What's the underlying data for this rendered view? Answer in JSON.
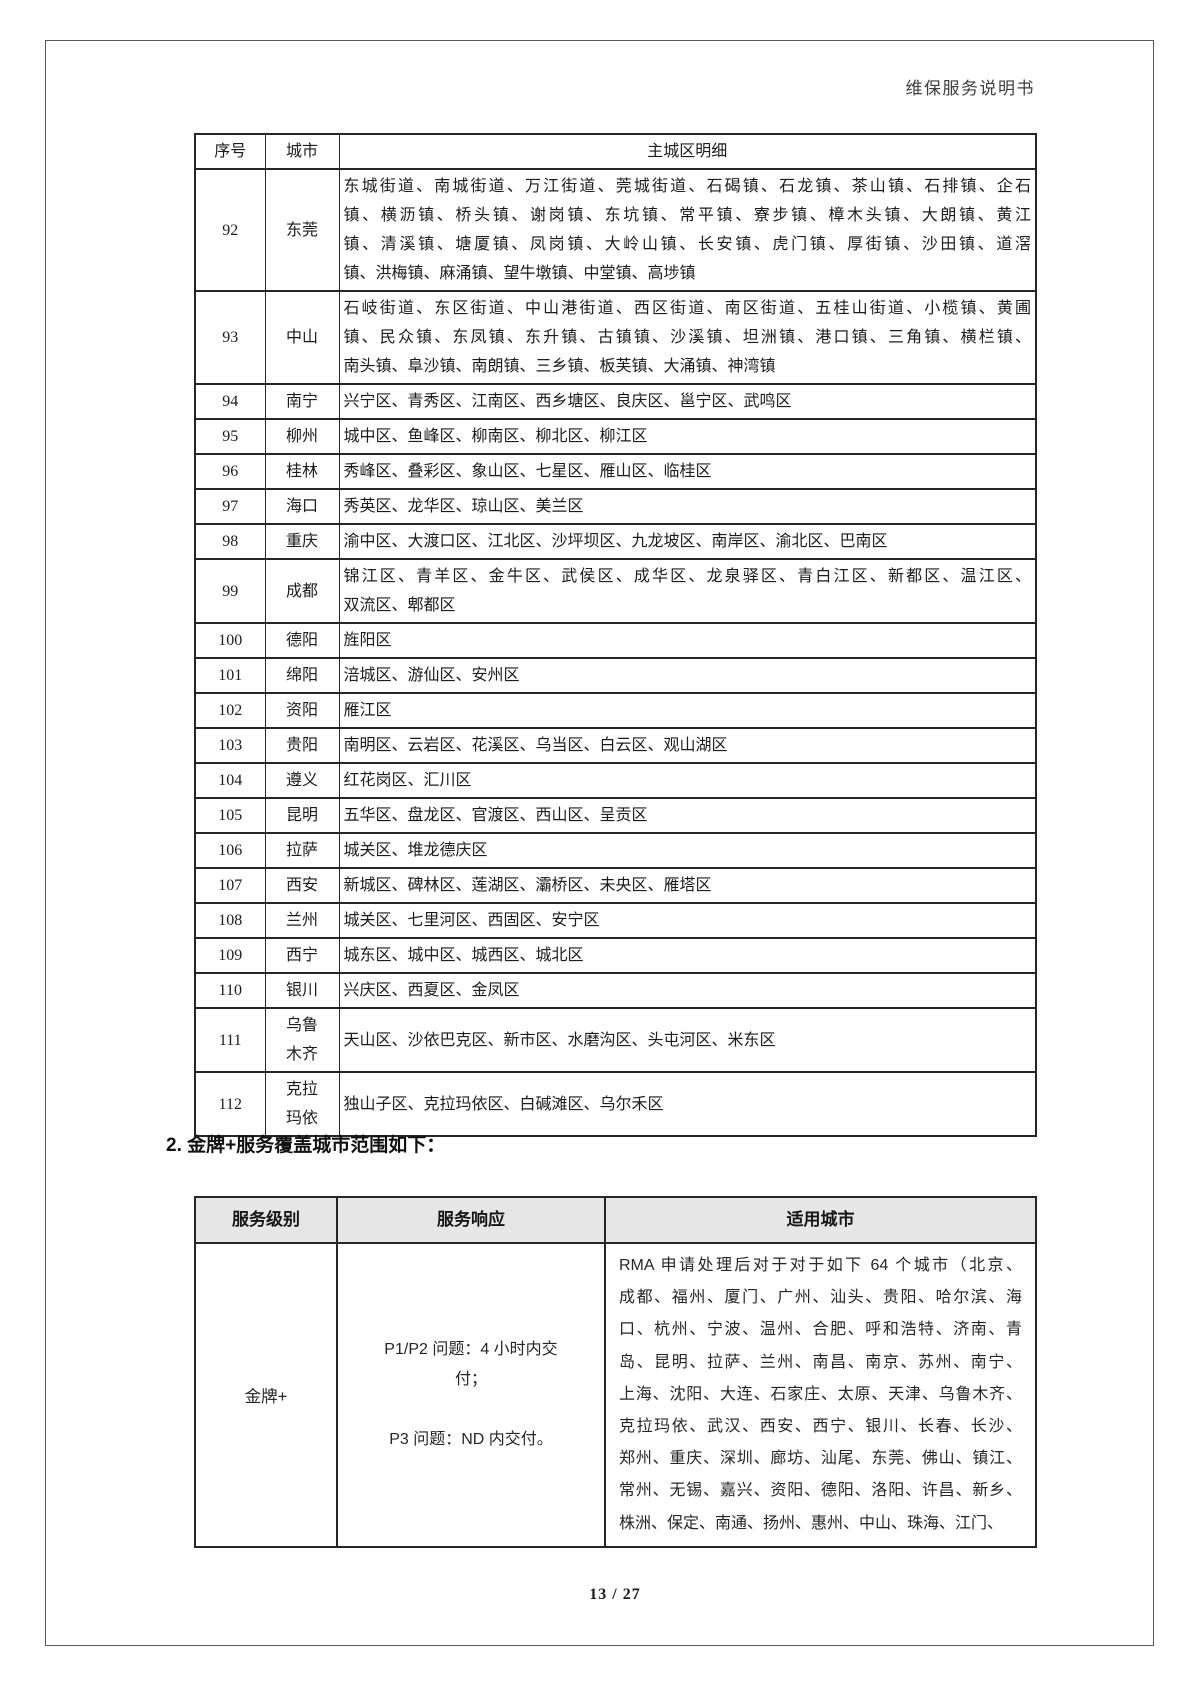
{
  "page": {
    "header_title": "维保服务说明书",
    "footer_page_number": "13 / 27"
  },
  "section_heading": "2. 金牌+服务覆盖城市范围如下：",
  "table1": {
    "headers": [
      "序号",
      "城市",
      "主城区明细"
    ],
    "rows": [
      {
        "no": "92",
        "city": "东莞",
        "districts": [
          "东城街道、南城街道、万江街道、莞城街道、石碣镇、石龙镇、茶山镇、石排镇、企石",
          "镇、横沥镇、桥头镇、谢岗镇、东坑镇、常平镇、寮步镇、樟木头镇、大朗镇、黄江",
          "镇、清溪镇、塘厦镇、凤岗镇、大岭山镇、长安镇、虎门镇、厚街镇、沙田镇、道滘",
          "镇、洪梅镇、麻涌镇、望牛墩镇、中堂镇、高埗镇"
        ]
      },
      {
        "no": "93",
        "city": "中山",
        "districts": [
          "石岐街道、东区街道、中山港街道、西区街道、南区街道、五桂山街道、小榄镇、黄圃",
          "镇、民众镇、东凤镇、东升镇、古镇镇、沙溪镇、坦洲镇、港口镇、三角镇、横栏镇、",
          "南头镇、阜沙镇、南朗镇、三乡镇、板芙镇、大涌镇、神湾镇"
        ]
      },
      {
        "no": "94",
        "city": "南宁",
        "districts": [
          "兴宁区、青秀区、江南区、西乡塘区、良庆区、邕宁区、武鸣区"
        ]
      },
      {
        "no": "95",
        "city": "柳州",
        "districts": [
          "城中区、鱼峰区、柳南区、柳北区、柳江区"
        ]
      },
      {
        "no": "96",
        "city": "桂林",
        "districts": [
          "秀峰区、叠彩区、象山区、七星区、雁山区、临桂区"
        ]
      },
      {
        "no": "97",
        "city": "海口",
        "districts": [
          "秀英区、龙华区、琼山区、美兰区"
        ]
      },
      {
        "no": "98",
        "city": "重庆",
        "districts": [
          "渝中区、大渡口区、江北区、沙坪坝区、九龙坡区、南岸区、渝北区、巴南区"
        ]
      },
      {
        "no": "99",
        "city": "成都",
        "districts": [
          "锦江区、青羊区、金牛区、武侯区、成华区、龙泉驿区、青白江区、新都区、温江区、",
          "双流区、郫都区"
        ]
      },
      {
        "no": "100",
        "city": "德阳",
        "districts": [
          "旌阳区"
        ]
      },
      {
        "no": "101",
        "city": "绵阳",
        "districts": [
          "涪城区、游仙区、安州区"
        ]
      },
      {
        "no": "102",
        "city": "资阳",
        "districts": [
          "雁江区"
        ]
      },
      {
        "no": "103",
        "city": "贵阳",
        "districts": [
          "南明区、云岩区、花溪区、乌当区、白云区、观山湖区"
        ]
      },
      {
        "no": "104",
        "city": "遵义",
        "districts": [
          "红花岗区、汇川区"
        ]
      },
      {
        "no": "105",
        "city": "昆明",
        "districts": [
          "五华区、盘龙区、官渡区、西山区、呈贡区"
        ]
      },
      {
        "no": "106",
        "city": "拉萨",
        "districts": [
          "城关区、堆龙德庆区"
        ]
      },
      {
        "no": "107",
        "city": "西安",
        "districts": [
          "新城区、碑林区、莲湖区、灞桥区、未央区、雁塔区"
        ]
      },
      {
        "no": "108",
        "city": "兰州",
        "districts": [
          "城关区、七里河区、西固区、安宁区"
        ]
      },
      {
        "no": "109",
        "city": "西宁",
        "districts": [
          "城东区、城中区、城西区、城北区"
        ]
      },
      {
        "no": "110",
        "city": "银川",
        "districts": [
          "兴庆区、西夏区、金凤区"
        ]
      },
      {
        "no": "111",
        "city": "乌鲁\n木齐",
        "districts": [
          "天山区、沙依巴克区、新市区、水磨沟区、头屯河区、米东区"
        ]
      },
      {
        "no": "112",
        "city": "克拉\n玛依",
        "districts": [
          "独山子区、克拉玛依区、白碱滩区、乌尔禾区"
        ]
      }
    ]
  },
  "table2": {
    "header_bg_color": "#e7e6e6",
    "headers": [
      "服务级别",
      "服务响应",
      "适用城市"
    ],
    "rows": [
      {
        "level": "金牌+",
        "response": [
          "P1/P2 问题：4 小时内交",
          "付；",
          "",
          "P3 问题：ND 内交付。"
        ],
        "cities": [
          "RMA 申请处理后对于对于如下 64 个城市（北京、",
          "成都、福州、厦门、广州、汕头、贵阳、哈尔滨、海",
          "口、杭州、宁波、温州、合肥、呼和浩特、济南、青",
          "岛、昆明、拉萨、兰州、南昌、南京、苏州、南宁、",
          "上海、沈阳、大连、石家庄、太原、天津、乌鲁木齐、",
          "克拉玛依、武汉、西安、西宁、银川、长春、长沙、",
          "郑州、重庆、深圳、廊坊、汕尾、东莞、佛山、镇江、",
          "常州、无锡、嘉兴、资阳、德阳、洛阳、许昌、新乡、",
          "株洲、保定、南通、扬州、惠州、中山、珠海、江门、"
        ]
      }
    ]
  }
}
